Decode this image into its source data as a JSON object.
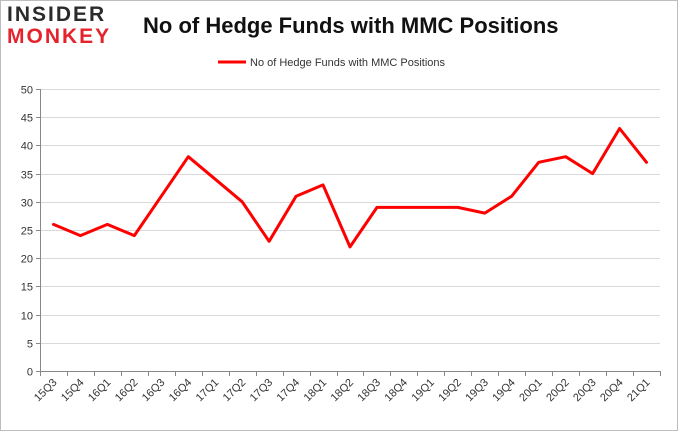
{
  "logo": {
    "line1": "INSIDER",
    "line2": "MONKEY"
  },
  "chart_data": {
    "type": "line",
    "title": "No of Hedge Funds with MMC Positions",
    "xlabel": "",
    "ylabel": "",
    "categories": [
      "15Q3",
      "15Q4",
      "16Q1",
      "16Q2",
      "16Q3",
      "16Q4",
      "17Q1",
      "17Q2",
      "17Q3",
      "17Q4",
      "18Q1",
      "18Q2",
      "18Q3",
      "18Q4",
      "19Q1",
      "19Q2",
      "19Q3",
      "19Q4",
      "20Q1",
      "20Q2",
      "20Q3",
      "20Q4",
      "21Q1"
    ],
    "series": [
      {
        "name": "No of Hedge Funds with MMC Positions",
        "color": "#ff0000",
        "values": [
          26,
          24,
          26,
          24,
          31,
          38,
          34,
          30,
          23,
          31,
          33,
          22,
          29,
          29,
          29,
          29,
          28,
          31,
          37,
          38,
          35,
          43,
          37
        ]
      }
    ],
    "ylim": [
      0,
      50
    ],
    "yticks": [
      0,
      5,
      10,
      15,
      20,
      25,
      30,
      35,
      40,
      45,
      50
    ],
    "grid": true,
    "legend": "top-center"
  }
}
